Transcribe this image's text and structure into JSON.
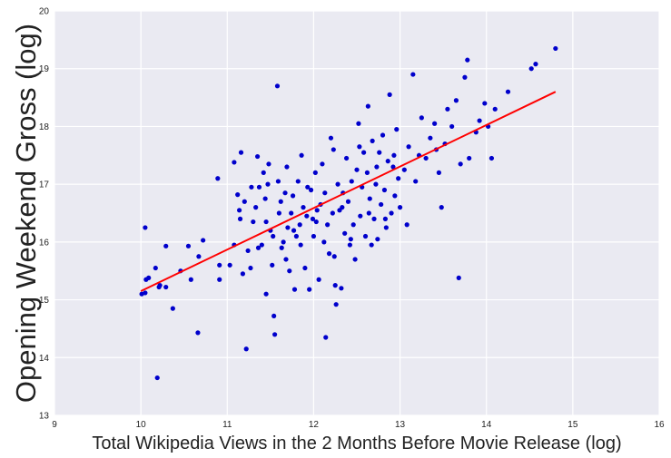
{
  "chart_data": {
    "type": "scatter",
    "title": "",
    "xlabel": "Total Wikipedia Views in the 2 Months Before Movie Release (log)",
    "ylabel": "Opening Weekend Gross (log)",
    "xlim": [
      9,
      16
    ],
    "ylim": [
      13,
      20
    ],
    "xticks": [
      "9",
      "10",
      "11",
      "12",
      "13",
      "14",
      "15",
      "16"
    ],
    "yticks": [
      "13",
      "14",
      "15",
      "16",
      "17",
      "18",
      "19",
      "20"
    ],
    "grid": true,
    "legend": "none",
    "colors": {
      "background": "#eaeaf2",
      "grid": "#ffffff",
      "points": "#0000cc",
      "fit_line": "#ff0000"
    },
    "series": [
      {
        "type": "scatter",
        "points": [
          [
            10.01,
            15.1
          ],
          [
            10.05,
            15.12
          ],
          [
            10.05,
            16.25
          ],
          [
            10.06,
            15.35
          ],
          [
            10.09,
            15.38
          ],
          [
            10.17,
            15.55
          ],
          [
            10.19,
            13.65
          ],
          [
            10.21,
            15.22
          ],
          [
            10.22,
            15.25
          ],
          [
            10.29,
            15.22
          ],
          [
            10.29,
            15.93
          ],
          [
            10.37,
            14.85
          ],
          [
            10.46,
            15.5
          ],
          [
            10.55,
            15.93
          ],
          [
            10.58,
            15.35
          ],
          [
            10.66,
            14.43
          ],
          [
            10.67,
            15.75
          ],
          [
            10.72,
            16.03
          ],
          [
            10.89,
            17.1
          ],
          [
            10.91,
            15.6
          ],
          [
            10.91,
            15.35
          ],
          [
            11.03,
            15.6
          ],
          [
            11.08,
            15.95
          ],
          [
            11.08,
            17.38
          ],
          [
            11.12,
            16.82
          ],
          [
            11.14,
            16.55
          ],
          [
            11.16,
            17.55
          ],
          [
            11.18,
            15.45
          ],
          [
            11.2,
            16.7
          ],
          [
            11.22,
            14.15
          ],
          [
            11.24,
            15.85
          ],
          [
            11.27,
            15.55
          ],
          [
            11.3,
            16.35
          ],
          [
            11.33,
            16.6
          ],
          [
            11.35,
            17.48
          ],
          [
            11.37,
            16.95
          ],
          [
            11.4,
            15.95
          ],
          [
            11.42,
            17.2
          ],
          [
            11.45,
            16.35
          ],
          [
            11.45,
            15.1
          ],
          [
            11.47,
            17.0
          ],
          [
            11.48,
            17.35
          ],
          [
            11.5,
            16.2
          ],
          [
            11.52,
            15.6
          ],
          [
            11.54,
            14.72
          ],
          [
            11.55,
            14.4
          ],
          [
            11.58,
            18.7
          ],
          [
            11.59,
            17.05
          ],
          [
            11.6,
            16.5
          ],
          [
            11.62,
            16.7
          ],
          [
            11.65,
            16.0
          ],
          [
            11.67,
            16.85
          ],
          [
            11.68,
            15.7
          ],
          [
            11.7,
            16.25
          ],
          [
            11.72,
            15.5
          ],
          [
            11.74,
            16.5
          ],
          [
            11.76,
            16.8
          ],
          [
            11.78,
            15.18
          ],
          [
            11.8,
            16.1
          ],
          [
            11.82,
            17.05
          ],
          [
            11.84,
            16.3
          ],
          [
            11.86,
            17.5
          ],
          [
            11.88,
            16.6
          ],
          [
            11.9,
            15.55
          ],
          [
            11.92,
            16.45
          ],
          [
            11.95,
            15.18
          ],
          [
            11.97,
            16.9
          ],
          [
            11.99,
            16.4
          ],
          [
            12.0,
            16.1
          ],
          [
            12.02,
            17.2
          ],
          [
            12.04,
            16.55
          ],
          [
            12.06,
            15.35
          ],
          [
            12.08,
            16.65
          ],
          [
            12.1,
            17.35
          ],
          [
            12.12,
            16.0
          ],
          [
            12.14,
            14.35
          ],
          [
            12.16,
            16.3
          ],
          [
            12.18,
            15.8
          ],
          [
            12.2,
            17.8
          ],
          [
            12.22,
            16.5
          ],
          [
            12.24,
            15.75
          ],
          [
            12.25,
            15.25
          ],
          [
            12.26,
            14.92
          ],
          [
            12.28,
            17.0
          ],
          [
            12.3,
            16.55
          ],
          [
            12.32,
            15.2
          ],
          [
            12.34,
            16.85
          ],
          [
            12.36,
            16.15
          ],
          [
            12.38,
            17.45
          ],
          [
            12.4,
            16.7
          ],
          [
            12.42,
            15.95
          ],
          [
            12.44,
            17.05
          ],
          [
            12.46,
            16.3
          ],
          [
            12.48,
            15.7
          ],
          [
            12.5,
            17.25
          ],
          [
            12.52,
            18.05
          ],
          [
            12.54,
            16.45
          ],
          [
            12.56,
            16.95
          ],
          [
            12.58,
            17.55
          ],
          [
            12.6,
            16.1
          ],
          [
            12.62,
            17.2
          ],
          [
            12.63,
            18.35
          ],
          [
            12.65,
            16.75
          ],
          [
            12.67,
            15.95
          ],
          [
            12.68,
            17.75
          ],
          [
            12.7,
            16.4
          ],
          [
            12.72,
            17.0
          ],
          [
            12.74,
            16.05
          ],
          [
            12.76,
            17.55
          ],
          [
            12.78,
            16.65
          ],
          [
            12.8,
            17.85
          ],
          [
            12.82,
            16.9
          ],
          [
            12.84,
            16.25
          ],
          [
            12.86,
            17.4
          ],
          [
            12.88,
            18.55
          ],
          [
            12.9,
            16.5
          ],
          [
            12.92,
            17.3
          ],
          [
            12.94,
            16.8
          ],
          [
            12.96,
            17.95
          ],
          [
            12.98,
            17.1
          ],
          [
            13.0,
            16.6
          ],
          [
            13.05,
            17.25
          ],
          [
            13.08,
            16.3
          ],
          [
            13.1,
            17.65
          ],
          [
            13.15,
            18.9
          ],
          [
            13.18,
            17.05
          ],
          [
            13.22,
            17.5
          ],
          [
            13.25,
            18.15
          ],
          [
            13.3,
            17.45
          ],
          [
            13.35,
            17.8
          ],
          [
            13.4,
            18.05
          ],
          [
            13.42,
            17.6
          ],
          [
            13.45,
            17.2
          ],
          [
            13.48,
            16.6
          ],
          [
            13.52,
            17.7
          ],
          [
            13.55,
            18.3
          ],
          [
            13.6,
            18.0
          ],
          [
            13.65,
            18.45
          ],
          [
            13.68,
            15.38
          ],
          [
            13.7,
            17.35
          ],
          [
            13.75,
            18.85
          ],
          [
            13.78,
            19.15
          ],
          [
            13.8,
            17.45
          ],
          [
            13.88,
            17.9
          ],
          [
            13.92,
            18.1
          ],
          [
            13.98,
            18.4
          ],
          [
            14.02,
            18.0
          ],
          [
            14.06,
            17.45
          ],
          [
            14.1,
            18.3
          ],
          [
            14.25,
            18.6
          ],
          [
            14.52,
            19.0
          ],
          [
            14.57,
            19.08
          ],
          [
            14.8,
            19.35
          ],
          [
            11.15,
            16.4
          ],
          [
            11.28,
            16.95
          ],
          [
            11.36,
            15.9
          ],
          [
            11.44,
            16.75
          ],
          [
            11.53,
            16.1
          ],
          [
            11.63,
            15.9
          ],
          [
            11.69,
            17.3
          ],
          [
            11.77,
            16.2
          ],
          [
            11.85,
            15.95
          ],
          [
            11.93,
            16.95
          ],
          [
            12.03,
            16.35
          ],
          [
            12.13,
            16.85
          ],
          [
            12.23,
            17.6
          ],
          [
            12.33,
            16.6
          ],
          [
            12.43,
            16.05
          ],
          [
            12.53,
            17.65
          ],
          [
            12.64,
            16.5
          ],
          [
            12.73,
            17.3
          ],
          [
            12.83,
            16.4
          ],
          [
            12.93,
            17.5
          ]
        ]
      },
      {
        "type": "line",
        "name": "",
        "x": [
          10.0,
          14.8
        ],
        "y": [
          15.15,
          18.6
        ]
      }
    ]
  }
}
